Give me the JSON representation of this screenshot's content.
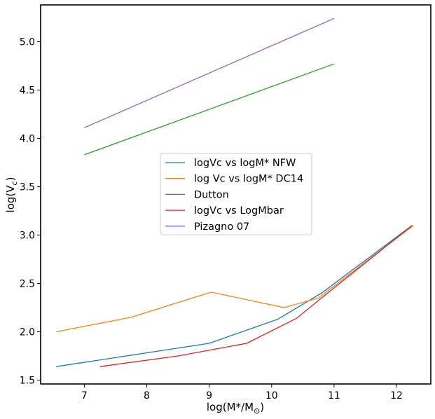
{
  "chart_data": {
    "type": "line",
    "title": "",
    "xlabel": "log(M*/M",
    "xlabel_sub": "⊙",
    "xlabel_end": ")",
    "ylabel": "log(V",
    "ylabel_sub": "c",
    "ylabel_end": ")",
    "xlim": [
      6.3,
      12.55
    ],
    "ylim": [
      1.46,
      5.38
    ],
    "xticks": [
      7,
      8,
      9,
      10,
      11,
      12
    ],
    "xtick_labels": [
      "7",
      "8",
      "9",
      "10",
      "11",
      "12"
    ],
    "yticks": [
      1.5,
      2.0,
      2.5,
      3.0,
      3.5,
      4.0,
      4.5,
      5.0
    ],
    "ytick_labels": [
      "1.5",
      "2.0",
      "2.5",
      "3.0",
      "3.5",
      "4.0",
      "4.5",
      "5.0"
    ],
    "grid": false,
    "legend_position": "center",
    "series": [
      {
        "name": "logVc vs logM* NFW",
        "color": "#1f77b4",
        "x": [
          6.55,
          9.0,
          10.1,
          10.8,
          12.25
        ],
        "y": [
          1.64,
          1.88,
          2.13,
          2.4,
          3.1
        ]
      },
      {
        "name": "log Vc vs logM* DC14",
        "color": "#ff7f0e",
        "x": [
          6.55,
          7.75,
          9.03,
          10.2,
          10.75,
          12.27
        ],
        "y": [
          2.0,
          2.15,
          2.41,
          2.25,
          2.35,
          3.1
        ]
      },
      {
        "name": "Dutton",
        "color": "#2ca02c",
        "x": [
          7.0,
          11.0
        ],
        "y": [
          3.83,
          4.77
        ]
      },
      {
        "name": "logVc vs LogMbar",
        "color": "#d62728",
        "x": [
          7.25,
          8.5,
          9.6,
          10.4,
          10.8,
          12.25
        ],
        "y": [
          1.64,
          1.75,
          1.88,
          2.14,
          2.35,
          3.1
        ]
      },
      {
        "name": "Pizagno 07",
        "color": "#9467bd",
        "x": [
          7.0,
          11.0
        ],
        "y": [
          4.11,
          5.24
        ]
      }
    ]
  }
}
